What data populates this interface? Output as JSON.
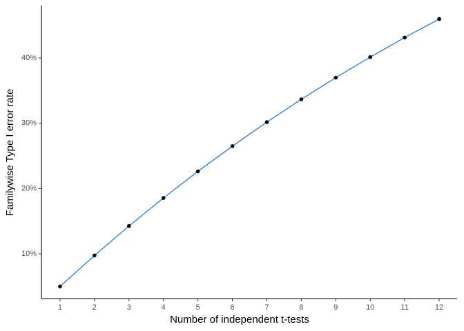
{
  "chart_data": {
    "type": "line",
    "x_label": "Number of independent t-tests",
    "y_label": "Familywise Type I error rate",
    "x": [
      1,
      2,
      3,
      4,
      5,
      6,
      7,
      8,
      9,
      10,
      11,
      12
    ],
    "series": [
      {
        "color": "#1f7cf0",
        "marker_color": "#000000",
        "values": [
          5,
          9.75,
          14.26,
          18.55,
          22.62,
          26.49,
          30.17,
          33.66,
          36.98,
          40.13,
          43.12,
          45.96
        ]
      }
    ],
    "xlim": [
      0.46,
      12.52
    ],
    "xticks": [
      1,
      2,
      3,
      4,
      5,
      6,
      7,
      8,
      9,
      10,
      11,
      12
    ],
    "ylim": [
      3.14,
      48.03
    ],
    "yticks": [
      {
        "value": 10,
        "label": "10%"
      },
      {
        "value": 20,
        "label": "20%"
      },
      {
        "value": 30,
        "label": "30%"
      },
      {
        "value": 40,
        "label": "40%"
      }
    ],
    "grid": false
  }
}
